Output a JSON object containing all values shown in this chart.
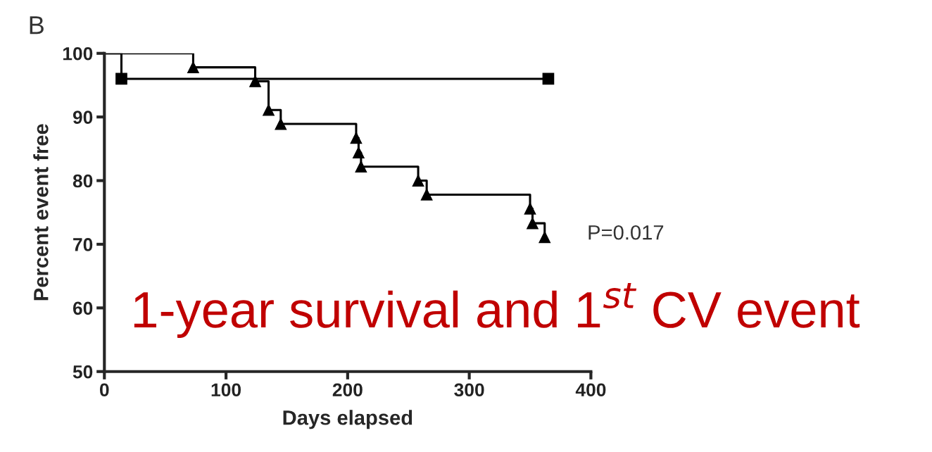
{
  "chart_data": {
    "type": "step",
    "title": "B",
    "xlabel": "Days elapsed",
    "ylabel": "Percent event free",
    "xlim": [
      0,
      400
    ],
    "xticks": [
      0,
      100,
      200,
      300,
      400
    ],
    "ylim": [
      50,
      100
    ],
    "yticks": [
      50,
      60,
      70,
      80,
      90,
      100
    ],
    "grid": false,
    "legend": false,
    "series": [
      {
        "color": "#000000",
        "marker": "square",
        "x": [
          0,
          14,
          365
        ],
        "values": [
          100,
          96,
          96
        ]
      },
      {
        "color": "#000000",
        "marker": "triangle",
        "x": [
          0,
          73,
          124,
          135,
          145,
          207,
          209,
          211,
          258,
          265,
          350,
          352,
          362
        ],
        "values": [
          100,
          97.8,
          95.6,
          91.1,
          88.9,
          86.7,
          84.4,
          82.2,
          80,
          77.8,
          75.6,
          73.3,
          71.1
        ]
      }
    ],
    "annotations": [
      "P=0.017",
      "1-year survival and 1$^{st}$ CV event"
    ]
  }
}
